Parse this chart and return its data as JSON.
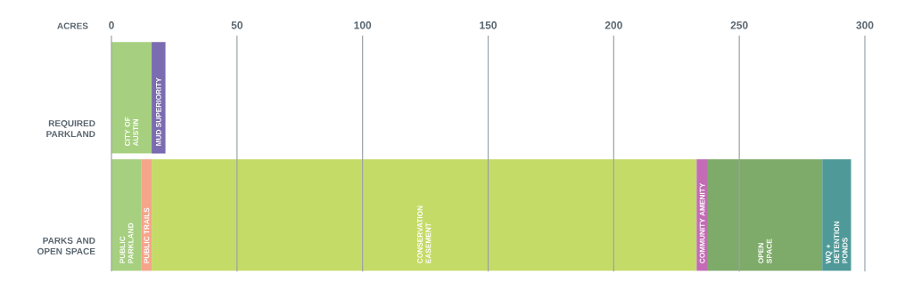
{
  "chart_data": {
    "type": "bar",
    "orientation": "horizontal",
    "stacked": true,
    "xlabel": "ACRES",
    "categories": [
      "REQUIRED PARKLAND",
      "PARKS AND OPEN SPACE"
    ],
    "series": [
      {
        "name": "CITY OF AUSTIN",
        "color": "#a6d07f",
        "values": [
          16,
          null
        ]
      },
      {
        "name": "MUD SUPERIORITY",
        "color": "#7b6bb0",
        "values": [
          5.5,
          null
        ]
      },
      {
        "name": "PUBLIC PARKLAND",
        "color": "#a6d07f",
        "values": [
          null,
          12
        ]
      },
      {
        "name": "PUBLIC TRAILS",
        "color": "#f4a58a",
        "values": [
          null,
          4
        ]
      },
      {
        "name": "CONSERVATION EASEMENT",
        "color": "#c5db68",
        "values": [
          null,
          217
        ]
      },
      {
        "name": "COMMUNITY AMENITY",
        "color": "#c36bb5",
        "values": [
          null,
          4.5
        ]
      },
      {
        "name": "OPEN SPACE",
        "color": "#7eab6a",
        "values": [
          null,
          45.5
        ]
      },
      {
        "name": "WQ + DETENTION PONDS",
        "color": "#4f9a98",
        "values": [
          null,
          11.5
        ]
      }
    ],
    "xlim": [
      0,
      300
    ],
    "xticks": [
      0,
      50,
      100,
      150,
      200,
      250,
      300
    ],
    "grid": "x"
  }
}
